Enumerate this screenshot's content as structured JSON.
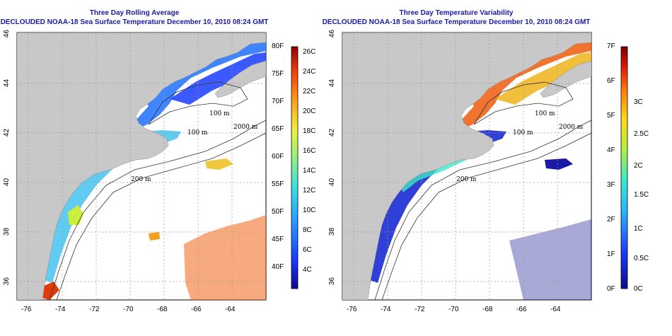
{
  "panels": [
    {
      "id": "left",
      "title_line1": "Three Day Rolling Average",
      "title_line2": "DECLOUDED NOAA-18 Sea Surface Temperature December 10, 2010 08:24 GMT",
      "colorbar_left_labels": [
        "80F",
        "75F",
        "70F",
        "65F",
        "60F",
        "55F",
        "50F",
        "45F",
        "40F"
      ],
      "colorbar_right_labels": [
        "26C",
        "24C",
        "22C",
        "20C",
        "18C",
        "16C",
        "14C",
        "12C",
        "10C",
        "8C",
        "6C",
        "4C"
      ]
    },
    {
      "id": "right",
      "title_line1": "Three Day Temperature Variability",
      "title_line2": "DECLOUDED NOAA-18 Sea Surface Temperature December 10, 2010 08:24 GMT",
      "colorbar_left_labels": [
        "7F",
        "6F",
        "5F",
        "4F",
        "3F",
        "2F",
        "1F",
        "0F"
      ],
      "colorbar_right_labels": [
        "3C",
        "2.5C",
        "2C",
        "1.5C",
        "1C",
        "0.5C",
        "0C"
      ]
    }
  ],
  "map": {
    "x_ticks": [
      "-76",
      "-74",
      "-72",
      "-70",
      "-68",
      "-66",
      "-64"
    ],
    "y_ticks": [
      "46",
      "44",
      "42",
      "40",
      "38",
      "36"
    ],
    "contour_labels": [
      "100 m",
      "2000 m",
      "100 m",
      "200 m",
      "200 m",
      "100 m"
    ]
  },
  "colors": {
    "land": "#c8c8c8",
    "ocean": "#ffffff",
    "title": "#1a1aa6",
    "contour": "#333333"
  }
}
